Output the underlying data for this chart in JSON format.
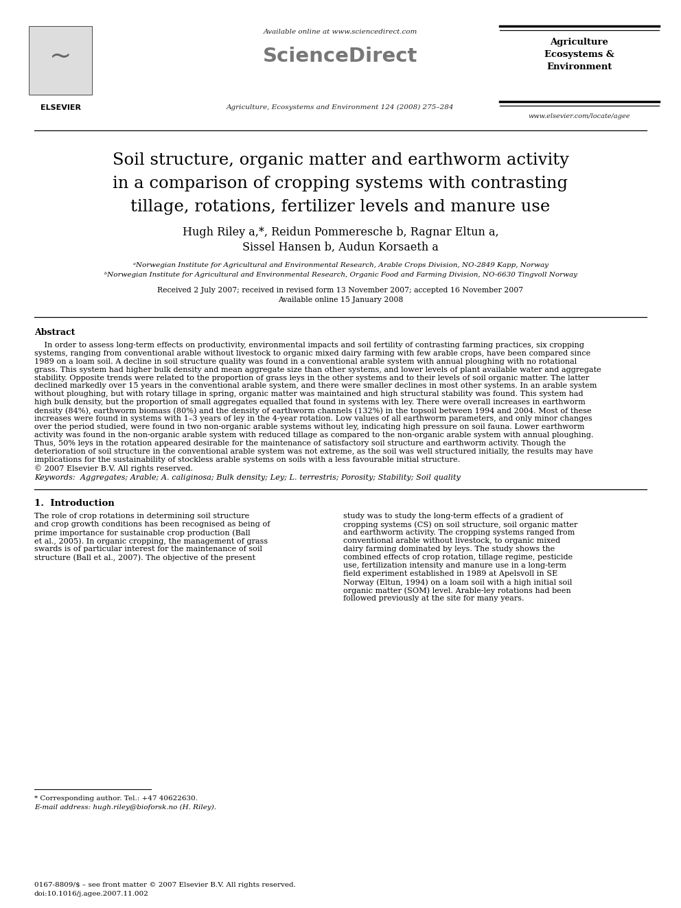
{
  "bg_color": "#ffffff",
  "avail_online": "Available online at www.sciencedirect.com",
  "sciencedirect": "ScienceDirect",
  "journal_citation": "Agriculture, Ecosystems and Environment 124 (2008) 275–284",
  "journal_name_right": "Agriculture\nEcosystems &\nEnvironment",
  "website": "www.elsevier.com/locate/agee",
  "title_line1": "Soil structure, organic matter and earthworm activity",
  "title_line2": "in a comparison of cropping systems with contrasting",
  "title_line3": "tillage, rotations, fertilizer levels and manure use",
  "author_line1": "Hugh Riley a,*, Reidun Pommeresche b, Ragnar Eltun a,",
  "author_line2": "Sissel Hansen b, Audun Korsaeth a",
  "affil_a": "ᵃNorwegian Institute for Agricultural and Environmental Research, Arable Crops Division, NO-2849 Kapp, Norway",
  "affil_b": "ᵇNorwegian Institute for Agricultural and Environmental Research, Organic Food and Farming Division, NO-6630 Tingvoll Norway",
  "received": "Received 2 July 2007; received in revised form 13 November 2007; accepted 16 November 2007",
  "avail_date": "Available online 15 January 2008",
  "abstract_head": "Abstract",
  "abstract_indent": "    In order to assess long-term effects on productivity, environmental impacts and soil fertility of contrasting farming practices, six cropping",
  "abstract_lines": [
    "systems, ranging from conventional arable without livestock to organic mixed dairy farming with few arable crops, have been compared since",
    "1989 on a loam soil. A decline in soil structure quality was found in a conventional arable system with annual ploughing with no rotational",
    "grass. This system had higher bulk density and mean aggregate size than other systems, and lower levels of plant available water and aggregate",
    "stability. Opposite trends were related to the proportion of grass leys in the other systems and to their levels of soil organic matter. The latter",
    "declined markedly over 15 years in the conventional arable system, and there were smaller declines in most other systems. In an arable system",
    "without ploughing, but with rotary tillage in spring, organic matter was maintained and high structural stability was found. This system had",
    "high bulk density, but the proportion of small aggregates equalled that found in systems with ley. There were overall increases in earthworm",
    "density (84%), earthworm biomass (80%) and the density of earthworm channels (132%) in the topsoil between 1994 and 2004. Most of these",
    "increases were found in systems with 1–3 years of ley in the 4-year rotation. Low values of all earthworm parameters, and only minor changes",
    "over the period studied, were found in two non-organic arable systems without ley, indicating high pressure on soil fauna. Lower earthworm",
    "activity was found in the non-organic arable system with reduced tillage as compared to the non-organic arable system with annual ploughing.",
    "Thus, 50% leys in the rotation appeared desirable for the maintenance of satisfactory soil structure and earthworm activity. Though the",
    "deterioration of soil structure in the conventional arable system was not extreme, as the soil was well structured initially, the results may have",
    "implications for the sustainability of stockless arable systems on soils with a less favourable initial structure."
  ],
  "copyright": "© 2007 Elsevier B.V. All rights reserved.",
  "keywords": "Keywords:  Aggregates; Arable; A. caliginosa; Bulk density; Ley; L. terrestris; Porosity; Stability; Soil quality",
  "sec1_head": "1.  Introduction",
  "sec1_col1": [
    "The role of crop rotations in determining soil structure",
    "and crop growth conditions has been recognised as being of",
    "prime importance for sustainable crop production (Ball",
    "et al., 2005). In organic cropping, the management of grass",
    "swards is of particular interest for the maintenance of soil",
    "structure (Ball et al., 2007). The objective of the present"
  ],
  "sec1_col2": [
    "study was to study the long-term effects of a gradient of",
    "cropping systems (CS) on soil structure, soil organic matter",
    "and earthworm activity. The cropping systems ranged from",
    "conventional arable without livestock, to organic mixed",
    "dairy farming dominated by leys. The study shows the",
    "combined effects of crop rotation, tillage regime, pesticide",
    "use, fertilization intensity and manure use in a long-term",
    "field experiment established in 1989 at Apelsvoll in SE",
    "Norway (Eltun, 1994) on a loam soil with a high initial soil",
    "organic matter (SOM) level. Arable-ley rotations had been",
    "followed previously at the site for many years."
  ],
  "footnote1": "* Corresponding author. Tel.: +47 40622630.",
  "footnote2": "E-mail address: hugh.riley@bioforsk.no (H. Riley).",
  "footer1": "0167-8809/$ – see front matter © 2007 Elsevier B.V. All rights reserved.",
  "footer2": "doi:10.1016/j.agee.2007.11.002"
}
